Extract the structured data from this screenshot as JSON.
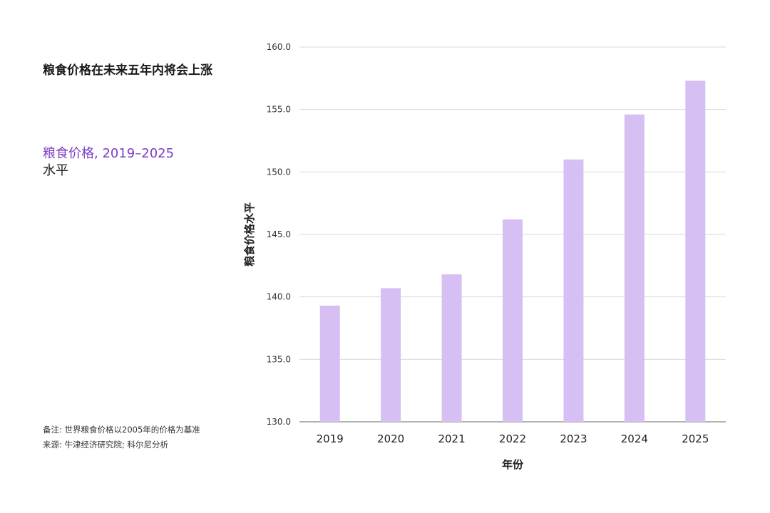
{
  "header": {
    "headline": "粮食价格在未来五年内将会上涨",
    "subtitle_accent": "粮食价格, 2019–2025",
    "subtitle_unit": "水平"
  },
  "notes": {
    "note": "备注: 世界粮食价格以2005年的价格为基准",
    "source": "来源: 牛津经济研究院; 科尔尼分析"
  },
  "colors": {
    "bar": "#d6bff2",
    "accent": "#7a3dc2",
    "grid": "#d9d9d9",
    "axis": "#999999"
  },
  "chart_data": {
    "type": "bar",
    "categories": [
      "2019",
      "2020",
      "2021",
      "2022",
      "2023",
      "2024",
      "2025"
    ],
    "values": [
      139.3,
      140.7,
      141.8,
      146.2,
      151.0,
      154.6,
      157.3
    ],
    "ylim": [
      130,
      160
    ],
    "yticks": [
      "130.0",
      "135.0",
      "140.0",
      "145.0",
      "150.0",
      "155.0",
      "160.0"
    ],
    "xlabel": "年份",
    "ylabel": "粮食价格水平",
    "grid": true
  }
}
